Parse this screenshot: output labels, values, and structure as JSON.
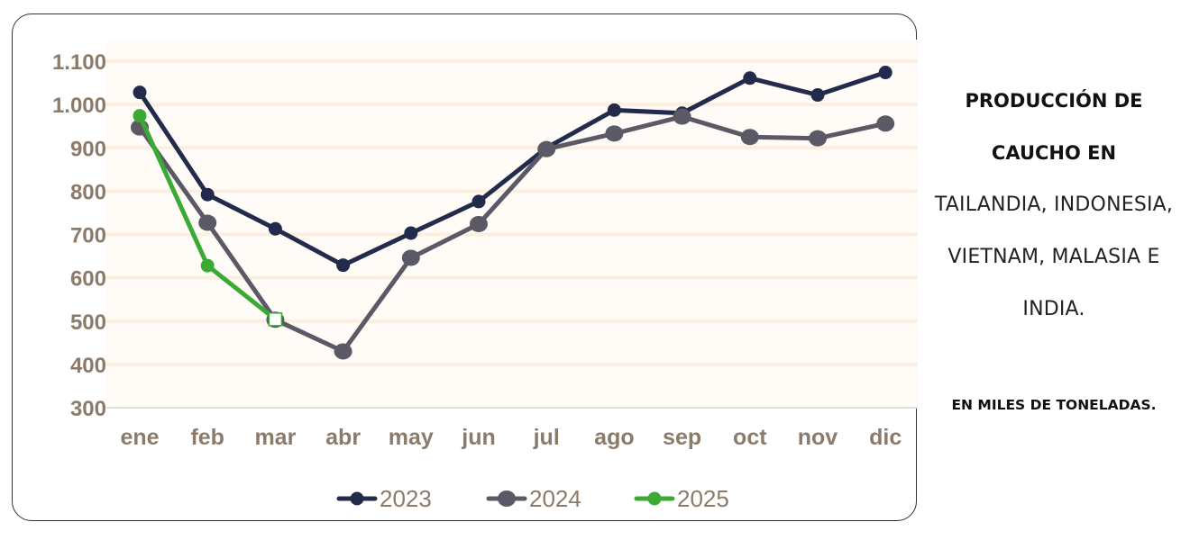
{
  "chart_data": {
    "type": "line",
    "categories": [
      "ene",
      "feb",
      "mar",
      "abr",
      "may",
      "jun",
      "jul",
      "ago",
      "sep",
      "oct",
      "nov",
      "dic"
    ],
    "series": [
      {
        "name": "2023",
        "color": "#232b4d",
        "values": [
          1028,
          792,
          713,
          629,
          703,
          776,
          900,
          987,
          980,
          1061,
          1022,
          1074
        ]
      },
      {
        "name": "2024",
        "color": "#5b5965",
        "values": [
          947,
          727,
          503,
          430,
          646,
          724,
          897,
          933,
          972,
          925,
          922,
          956
        ]
      },
      {
        "name": "2025",
        "color": "#3aaa35",
        "values": [
          974,
          628,
          504,
          null,
          null,
          null,
          null,
          null,
          null,
          null,
          null,
          null
        ]
      }
    ],
    "yticks": [
      "1.100",
      "1.000",
      "900",
      "800",
      "700",
      "600",
      "500",
      "400",
      "300"
    ],
    "ylim": [
      300,
      1100
    ],
    "grid": true,
    "legend_position": "bottom",
    "plot_background": "#fffcf7",
    "gridline_color": "#fdefdf"
  },
  "side_panel": {
    "title_bold": [
      "PRODUCCIÓN DE",
      "CAUCHO EN"
    ],
    "title_regular": [
      "TAILANDIA, INDONESIA,",
      "VIETNAM, MALASIA E",
      "INDIA."
    ],
    "unit_note": "EN MILES DE TONELADAS."
  }
}
